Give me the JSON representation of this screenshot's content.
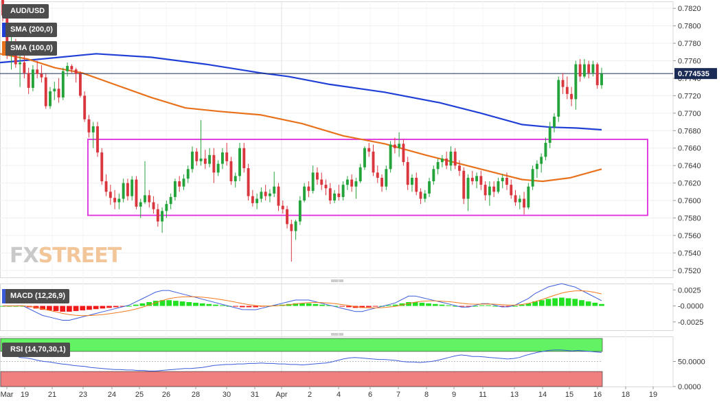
{
  "chart_data": {
    "type": "candlestick",
    "symbol": "AUD/USD",
    "current_price": "0.774535",
    "sma200_label": "SMA (200,0)",
    "sma100_label": "SMA (100,0)",
    "macd_label": "MACD (12,26,9)",
    "rsi_label": "RSI (14,70,30,1)",
    "logo_fx": "FX",
    "logo_street": "STREET",
    "colors": {
      "up": "#23a33a",
      "down": "#d9363e",
      "sma200": "#1f3fd6",
      "sma100": "#e8711c",
      "box": "#e23fe0",
      "macd_line": "#3a5bd9",
      "signal_line": "#f07a1e",
      "rsi_line": "#3a5bd9",
      "rsi_over": "#63f263",
      "rsi_under": "#f07f7f"
    },
    "x_labels": [
      "Mar",
      "19",
      "21",
      "23",
      "24",
      "25",
      "26",
      "28",
      "30",
      "31",
      "Apr",
      "2",
      "4",
      "6",
      "7",
      "8",
      "9",
      "11",
      "13",
      "14",
      "15",
      "16",
      "18",
      "19"
    ],
    "price_ticks": [
      "0.7820",
      "0.7800",
      "0.7780",
      "0.7760",
      "0.7740",
      "0.7720",
      "0.7700",
      "0.7680",
      "0.7660",
      "0.7640",
      "0.7620",
      "0.7600",
      "0.7580",
      "0.7560",
      "0.7540",
      "0.7520"
    ],
    "macd_ticks": [
      "0.0025",
      "-0.0000",
      "-0.0025"
    ],
    "rsi_ticks": [
      "50.0000",
      "0.0000"
    ],
    "range_box": {
      "price_top": 0.767,
      "price_bottom": 0.7583
    },
    "candles": [
      [
        0.783,
        0.7838,
        0.7805,
        0.7812
      ],
      [
        0.7812,
        0.7818,
        0.7762,
        0.7768
      ],
      [
        0.7768,
        0.779,
        0.775,
        0.778
      ],
      [
        0.778,
        0.7785,
        0.7752,
        0.7756
      ],
      [
        0.7756,
        0.777,
        0.773,
        0.7758
      ],
      [
        0.7758,
        0.7768,
        0.774,
        0.7746
      ],
      [
        0.7746,
        0.7752,
        0.7722,
        0.7729
      ],
      [
        0.7729,
        0.7755,
        0.7725,
        0.775
      ],
      [
        0.775,
        0.776,
        0.774,
        0.7745
      ],
      [
        0.7745,
        0.7755,
        0.7735,
        0.7741
      ],
      [
        0.7741,
        0.7745,
        0.7705,
        0.7708
      ],
      [
        0.7708,
        0.773,
        0.7705,
        0.7725
      ],
      [
        0.7725,
        0.7736,
        0.7715,
        0.7728
      ],
      [
        0.7728,
        0.774,
        0.7712,
        0.7718
      ],
      [
        0.7718,
        0.7752,
        0.7715,
        0.7748
      ],
      [
        0.7748,
        0.7758,
        0.7742,
        0.7754
      ],
      [
        0.7754,
        0.7756,
        0.7746,
        0.775
      ],
      [
        0.775,
        0.7752,
        0.7735,
        0.7745
      ],
      [
        0.7745,
        0.7748,
        0.7718,
        0.772
      ],
      [
        0.772,
        0.7725,
        0.769,
        0.7693
      ],
      [
        0.7693,
        0.7698,
        0.7672,
        0.7678
      ],
      [
        0.7678,
        0.769,
        0.766,
        0.7685
      ],
      [
        0.7685,
        0.769,
        0.765,
        0.7655
      ],
      [
        0.7655,
        0.766,
        0.7618,
        0.7622
      ],
      [
        0.7622,
        0.763,
        0.7605,
        0.761
      ],
      [
        0.761,
        0.7618,
        0.7595,
        0.7603
      ],
      [
        0.7603,
        0.7612,
        0.759,
        0.7598
      ],
      [
        0.7598,
        0.7608,
        0.759,
        0.7602
      ],
      [
        0.7602,
        0.7625,
        0.7598,
        0.762
      ],
      [
        0.762,
        0.7625,
        0.76,
        0.7605
      ],
      [
        0.7605,
        0.7628,
        0.76,
        0.7624
      ],
      [
        0.7624,
        0.7628,
        0.759,
        0.7593
      ],
      [
        0.7593,
        0.7602,
        0.758,
        0.7598
      ],
      [
        0.7598,
        0.7645,
        0.7596,
        0.7606
      ],
      [
        0.7606,
        0.7612,
        0.7592,
        0.7598
      ],
      [
        0.7598,
        0.7605,
        0.7585,
        0.759
      ],
      [
        0.759,
        0.7596,
        0.757,
        0.7576
      ],
      [
        0.7576,
        0.7592,
        0.7563,
        0.7588
      ],
      [
        0.7588,
        0.76,
        0.758,
        0.7596
      ],
      [
        0.7596,
        0.7608,
        0.759,
        0.7604
      ],
      [
        0.7604,
        0.7625,
        0.76,
        0.7622
      ],
      [
        0.7622,
        0.7628,
        0.761,
        0.7616
      ],
      [
        0.7616,
        0.763,
        0.7612,
        0.7625
      ],
      [
        0.7625,
        0.764,
        0.762,
        0.7636
      ],
      [
        0.7636,
        0.7662,
        0.7632,
        0.7656
      ],
      [
        0.7656,
        0.766,
        0.764,
        0.7645
      ],
      [
        0.7645,
        0.7692,
        0.764,
        0.7648
      ],
      [
        0.7648,
        0.7658,
        0.7636,
        0.7642
      ],
      [
        0.7642,
        0.766,
        0.7638,
        0.7652
      ],
      [
        0.7652,
        0.766,
        0.762,
        0.7632
      ],
      [
        0.7632,
        0.7646,
        0.7628,
        0.7642
      ],
      [
        0.7642,
        0.766,
        0.7636,
        0.7655
      ],
      [
        0.7655,
        0.7666,
        0.764,
        0.7645
      ],
      [
        0.7645,
        0.765,
        0.7618,
        0.7622
      ],
      [
        0.7622,
        0.7632,
        0.7615,
        0.7628
      ],
      [
        0.7628,
        0.7666,
        0.7622,
        0.766
      ],
      [
        0.766,
        0.7666,
        0.7632,
        0.7637
      ],
      [
        0.7637,
        0.7642,
        0.76,
        0.7605
      ],
      [
        0.7605,
        0.7612,
        0.7593,
        0.7597
      ],
      [
        0.7597,
        0.7608,
        0.759,
        0.7602
      ],
      [
        0.7602,
        0.7615,
        0.7598,
        0.761
      ],
      [
        0.761,
        0.7618,
        0.76,
        0.7605
      ],
      [
        0.7605,
        0.7613,
        0.7598,
        0.7608
      ],
      [
        0.7608,
        0.7633,
        0.7604,
        0.7616
      ],
      [
        0.7616,
        0.762,
        0.7588,
        0.7594
      ],
      [
        0.7594,
        0.76,
        0.7585,
        0.759
      ],
      [
        0.759,
        0.7594,
        0.7568,
        0.7573
      ],
      [
        0.7573,
        0.7578,
        0.753,
        0.7565
      ],
      [
        0.7565,
        0.7578,
        0.7555,
        0.7576
      ],
      [
        0.7576,
        0.7605,
        0.7572,
        0.76
      ],
      [
        0.76,
        0.762,
        0.7598,
        0.7616
      ],
      [
        0.7616,
        0.7622,
        0.7604,
        0.7611
      ],
      [
        0.7611,
        0.764,
        0.7608,
        0.7632
      ],
      [
        0.7632,
        0.7638,
        0.7618,
        0.7624
      ],
      [
        0.7624,
        0.7632,
        0.7612,
        0.7618
      ],
      [
        0.7618,
        0.7624,
        0.7606,
        0.7614
      ],
      [
        0.7614,
        0.762,
        0.7596,
        0.76
      ],
      [
        0.76,
        0.7612,
        0.7597,
        0.7608
      ],
      [
        0.7608,
        0.7618,
        0.76,
        0.7604
      ],
      [
        0.7604,
        0.7622,
        0.76,
        0.7618
      ],
      [
        0.7618,
        0.7628,
        0.7612,
        0.7624
      ],
      [
        0.7624,
        0.763,
        0.761,
        0.7616
      ],
      [
        0.7616,
        0.7626,
        0.7602,
        0.7622
      ],
      [
        0.7622,
        0.7642,
        0.762,
        0.7638
      ],
      [
        0.7638,
        0.7662,
        0.7635,
        0.766
      ],
      [
        0.766,
        0.7666,
        0.765,
        0.7656
      ],
      [
        0.7656,
        0.7664,
        0.7628,
        0.7632
      ],
      [
        0.7632,
        0.764,
        0.762,
        0.7626
      ],
      [
        0.7626,
        0.763,
        0.761,
        0.7616
      ],
      [
        0.7616,
        0.764,
        0.7612,
        0.7636
      ],
      [
        0.7636,
        0.7668,
        0.7632,
        0.7664
      ],
      [
        0.7664,
        0.7672,
        0.7654,
        0.766
      ],
      [
        0.766,
        0.7678,
        0.765,
        0.7665
      ],
      [
        0.7665,
        0.767,
        0.764,
        0.7644
      ],
      [
        0.7644,
        0.765,
        0.7612,
        0.7618
      ],
      [
        0.7618,
        0.763,
        0.761,
        0.7626
      ],
      [
        0.7626,
        0.7632,
        0.7606,
        0.761
      ],
      [
        0.761,
        0.7614,
        0.7596,
        0.7602
      ],
      [
        0.7602,
        0.7612,
        0.7598,
        0.7608
      ],
      [
        0.7608,
        0.7626,
        0.7604,
        0.7622
      ],
      [
        0.7622,
        0.764,
        0.7618,
        0.7636
      ],
      [
        0.7636,
        0.7648,
        0.763,
        0.7644
      ],
      [
        0.7644,
        0.7652,
        0.7638,
        0.7648
      ],
      [
        0.7648,
        0.7656,
        0.7636,
        0.764
      ],
      [
        0.764,
        0.7662,
        0.7634,
        0.7656
      ],
      [
        0.7656,
        0.766,
        0.7636,
        0.764
      ],
      [
        0.764,
        0.7646,
        0.7628,
        0.7634
      ],
      [
        0.7634,
        0.7638,
        0.7596,
        0.7602
      ],
      [
        0.7602,
        0.763,
        0.7588,
        0.7626
      ],
      [
        0.7626,
        0.7634,
        0.7618,
        0.7622
      ],
      [
        0.7622,
        0.7632,
        0.7614,
        0.7628
      ],
      [
        0.7628,
        0.7634,
        0.7612,
        0.7618
      ],
      [
        0.7618,
        0.7622,
        0.76,
        0.7606
      ],
      [
        0.7606,
        0.7622,
        0.7594,
        0.7616
      ],
      [
        0.7616,
        0.7622,
        0.7604,
        0.761
      ],
      [
        0.761,
        0.7626,
        0.7608,
        0.7622
      ],
      [
        0.7622,
        0.763,
        0.7614,
        0.7626
      ],
      [
        0.7626,
        0.7632,
        0.7612,
        0.7618
      ],
      [
        0.7618,
        0.7624,
        0.7602,
        0.7606
      ],
      [
        0.7606,
        0.7612,
        0.7594,
        0.7598
      ],
      [
        0.7598,
        0.7606,
        0.759,
        0.7602
      ],
      [
        0.7602,
        0.761,
        0.7584,
        0.7592
      ],
      [
        0.7592,
        0.762,
        0.759,
        0.7616
      ],
      [
        0.7616,
        0.764,
        0.7612,
        0.7636
      ],
      [
        0.7636,
        0.7646,
        0.7626,
        0.7642
      ],
      [
        0.7642,
        0.7654,
        0.7632,
        0.765
      ],
      [
        0.765,
        0.7672,
        0.7646,
        0.7666
      ],
      [
        0.7666,
        0.769,
        0.766,
        0.7684
      ],
      [
        0.7684,
        0.77,
        0.7678,
        0.7696
      ],
      [
        0.7696,
        0.7742,
        0.769,
        0.7738
      ],
      [
        0.7738,
        0.7746,
        0.7722,
        0.773
      ],
      [
        0.773,
        0.7742,
        0.7716,
        0.7722
      ],
      [
        0.7722,
        0.773,
        0.7708,
        0.7716
      ],
      [
        0.7716,
        0.776,
        0.7704,
        0.7756
      ],
      [
        0.7756,
        0.7762,
        0.7736,
        0.7742
      ],
      [
        0.7742,
        0.7762,
        0.774,
        0.7756
      ],
      [
        0.7756,
        0.776,
        0.774,
        0.7746
      ],
      [
        0.7746,
        0.776,
        0.7742,
        0.7756
      ],
      [
        0.7756,
        0.7758,
        0.7728,
        0.7732
      ],
      [
        0.7732,
        0.7752,
        0.7728,
        0.7745
      ]
    ],
    "macd_hist": [
      0,
      0,
      0,
      0,
      -0.0002,
      -0.0004,
      -0.0006,
      -0.0007,
      -0.0008,
      -0.0009,
      -0.0009,
      -0.0008,
      -0.0007,
      -0.0006,
      -0.0005,
      -0.0004,
      -0.0003,
      -0.0002,
      -0.0001,
      0,
      0.0002,
      0.0004,
      0.0006,
      0.0008,
      0.0009,
      0.0009,
      0.0008,
      0.0007,
      0.0006,
      0.0005,
      0.0004,
      0.0003,
      0.0002,
      0.0001,
      0,
      -0.0001,
      -0.0002,
      -0.0002,
      -0.0002,
      -0.0001,
      0,
      0.0001,
      0.0002,
      0.0003,
      0.0004,
      0.0004,
      0.0004,
      0.0003,
      0.0002,
      0.0001,
      0,
      -0.0001,
      -0.0002,
      -0.0003,
      -0.0003,
      -0.0002,
      -0.0001,
      0,
      0.0001,
      0.0002,
      0.0004,
      0.0006,
      0.0006,
      0.0005,
      0.0004,
      0.0003,
      0.0002,
      0.0001,
      0,
      -0.0001,
      -0.0001,
      0,
      0.0001,
      0.0001,
      0,
      -0.0001,
      -0.0001,
      0,
      0.0002,
      0.0004,
      0.0007,
      0.0009,
      0.0011,
      0.0012,
      0.0013,
      0.0012,
      0.0011,
      0.0009,
      0.0007,
      0.0005,
      0.0003
    ],
    "rsi": [
      68,
      66,
      62,
      58,
      57,
      55,
      52,
      50,
      49,
      47,
      45,
      44,
      42,
      41,
      40,
      38,
      37,
      36,
      35,
      34,
      34,
      33,
      33,
      32,
      32,
      31,
      31,
      32,
      33,
      34,
      35,
      36,
      36,
      37,
      38,
      40,
      42,
      43,
      44,
      44,
      45,
      45,
      46,
      46,
      47,
      46,
      46,
      45,
      45,
      44,
      44,
      43,
      44,
      45,
      46,
      47,
      49,
      52,
      55,
      57,
      58,
      57,
      56,
      55,
      54,
      54,
      53,
      52,
      50,
      49,
      49,
      48,
      49,
      50,
      52,
      55,
      58,
      61,
      63,
      62,
      60,
      60,
      59,
      58,
      57,
      56,
      55,
      56,
      58,
      62,
      65,
      68,
      70,
      72,
      73,
      73,
      72,
      71,
      72,
      71,
      70,
      69,
      68
    ]
  }
}
